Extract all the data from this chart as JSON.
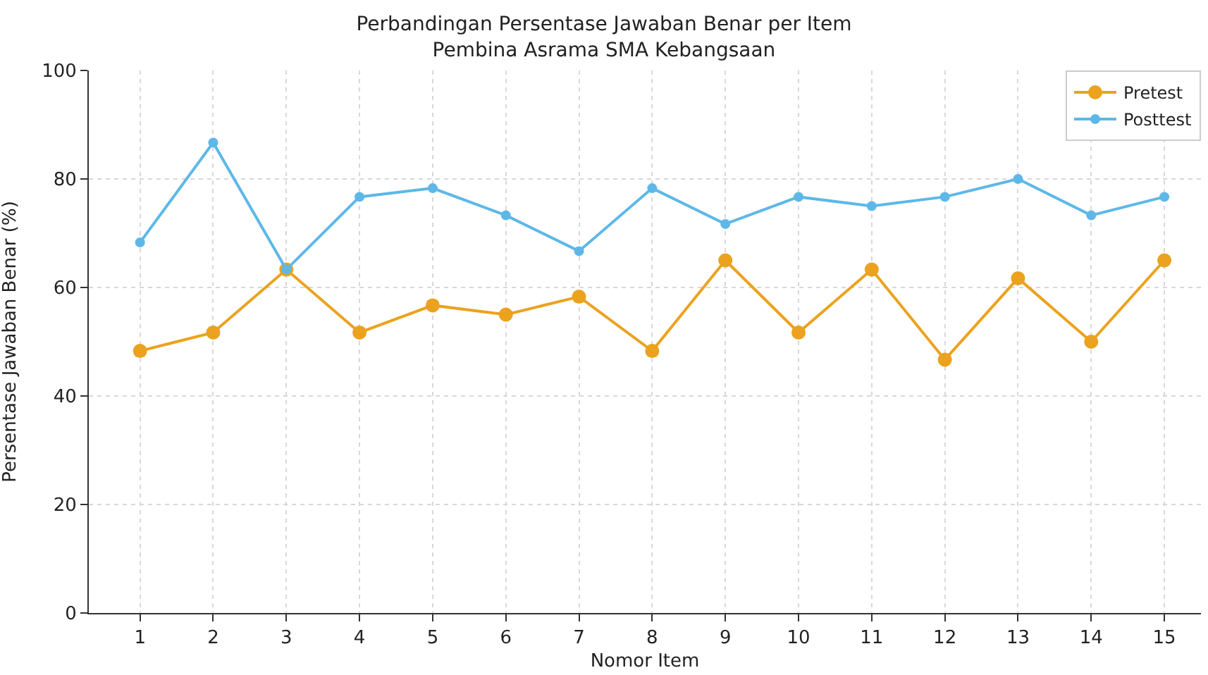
{
  "chart_data": {
    "type": "line",
    "title": "Perbandingan Persentase Jawaban Benar per Item\nPembina Asrama SMA Kebangsaan",
    "xlabel": "Nomor Item",
    "ylabel": "Persentase Jawaban Benar (%)",
    "x": [
      1,
      2,
      3,
      4,
      5,
      6,
      7,
      8,
      9,
      10,
      11,
      12,
      13,
      14,
      15
    ],
    "series": [
      {
        "name": "Pretest",
        "color": "#eba21e",
        "values": [
          48.3,
          51.7,
          63.3,
          51.7,
          56.7,
          55,
          58.3,
          48.3,
          65,
          51.7,
          63.3,
          46.7,
          61.7,
          50,
          65
        ]
      },
      {
        "name": "Posttest",
        "color": "#5db8e8",
        "values": [
          68.3,
          86.7,
          63.3,
          76.7,
          78.3,
          73.3,
          66.7,
          78.3,
          71.7,
          76.7,
          75,
          76.7,
          80,
          73.3,
          76.7
        ]
      }
    ],
    "xlim": [
      0.3,
      15.5
    ],
    "xticks": [
      1,
      2,
      3,
      4,
      5,
      6,
      7,
      8,
      9,
      10,
      11,
      12,
      13,
      14,
      15
    ],
    "ylim": [
      0,
      100
    ],
    "yticks": [
      0,
      20,
      40,
      60,
      80,
      100
    ],
    "grid": true,
    "legend": "top right",
    "marker": "circle",
    "line_style": "solid"
  }
}
